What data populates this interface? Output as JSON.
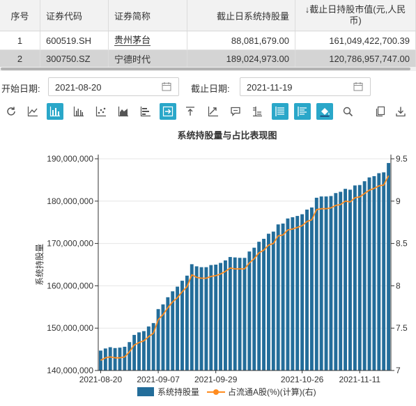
{
  "table": {
    "headers": {
      "no": "序号",
      "code": "证券代码",
      "name": "证券简称",
      "qty": "截止日系统持股量",
      "val": "↓截止日持股市值(元,人民币)"
    },
    "rows": [
      {
        "no": "1",
        "code": "600519.SH",
        "name": "贵州茅台",
        "qty": "88,081,679.00",
        "val": "161,049,422,700.39"
      },
      {
        "no": "2",
        "code": "300750.SZ",
        "name": "宁德时代",
        "qty": "189,024,973.00",
        "val": "120,786,957,747.00"
      }
    ]
  },
  "filters": {
    "start_label": "开始日期:",
    "start_value": "2021-08-20",
    "end_label": "截止日期:",
    "end_value": "2021-11-19"
  },
  "toolbar": {
    "icons": [
      "refresh-icon",
      "line-chart-icon",
      "bar-chart-icon",
      "grouped-bar-icon",
      "scatter-icon",
      "area-chart-icon",
      "horizontal-bar-icon",
      "export-right-icon",
      "upload-icon",
      "trend-icon",
      "comment-icon",
      "axis-settings-icon",
      "legend-left-icon",
      "legend-align-icon",
      "fill-color-icon",
      "zoom-icon",
      "copy-icon",
      "download-icon"
    ],
    "active": [
      "bar-chart-icon",
      "export-right-icon",
      "legend-left-icon",
      "legend-align-icon",
      "fill-color-icon"
    ]
  },
  "chart_data": {
    "type": "bar",
    "title": "系统持股量与占比表现图",
    "ylabel": "系统持股量",
    "y2label": "",
    "ylim": [
      140000000,
      190000000
    ],
    "y2lim": [
      7,
      9.5
    ],
    "yticks": [
      "140,000,000",
      "150,000,000",
      "160,000,000",
      "170,000,000",
      "180,000,000",
      "190,000,000"
    ],
    "y2ticks": [
      "7",
      "7.5",
      "8",
      "8.5",
      "9",
      "9.5"
    ],
    "xticks": [
      "2021-08-20",
      "2021-09-07",
      "2021-09-29",
      "2021-10-26",
      "2021-11-11"
    ],
    "xtick_index": [
      0,
      12,
      24,
      42,
      54
    ],
    "legend": [
      "系统持股量",
      "占流通A股(%)(计算)(右)"
    ],
    "colors": {
      "bar": "#236d9a",
      "line": "#ff8c1f",
      "grid": "#e6e6e6",
      "axis": "#333333"
    },
    "series": [
      {
        "name": "系统持股量",
        "type": "bar",
        "values": [
          144.7,
          145.2,
          145.5,
          145.3,
          145.4,
          145.6,
          146.7,
          148.4,
          149.0,
          149.3,
          150.4,
          151.2,
          154.5,
          155.6,
          157.3,
          158.7,
          159.8,
          161.2,
          162.4,
          165.1,
          164.6,
          164.4,
          164.4,
          164.9,
          165.0,
          165.4,
          166.0,
          166.8,
          166.7,
          166.6,
          166.6,
          168.1,
          169.0,
          170.4,
          171.1,
          172.3,
          172.8,
          174.5,
          174.7,
          175.9,
          176.2,
          176.5,
          176.9,
          178.0,
          178.5,
          180.8,
          181.1,
          181.1,
          181.2,
          181.9,
          182.2,
          182.9,
          182.7,
          183.7,
          183.8,
          184.7,
          185.6,
          185.9,
          186.6,
          186.8,
          189.0
        ]
      },
      {
        "name": "占流通A股(%)(计算)(右)",
        "type": "line",
        "values": [
          7.12,
          7.15,
          7.16,
          7.15,
          7.15,
          7.16,
          7.22,
          7.3,
          7.33,
          7.35,
          7.4,
          7.44,
          7.6,
          7.66,
          7.74,
          7.81,
          7.86,
          7.93,
          7.99,
          8.13,
          8.1,
          8.09,
          8.09,
          8.11,
          8.12,
          8.14,
          8.17,
          8.21,
          8.2,
          8.2,
          8.2,
          8.27,
          8.32,
          8.39,
          8.42,
          8.48,
          8.5,
          8.59,
          8.6,
          8.66,
          8.67,
          8.69,
          8.71,
          8.76,
          8.78,
          8.9,
          8.91,
          8.91,
          8.92,
          8.95,
          8.96,
          9.0,
          8.99,
          9.04,
          9.05,
          9.09,
          9.13,
          9.15,
          9.18,
          9.19,
          9.3
        ]
      }
    ]
  }
}
